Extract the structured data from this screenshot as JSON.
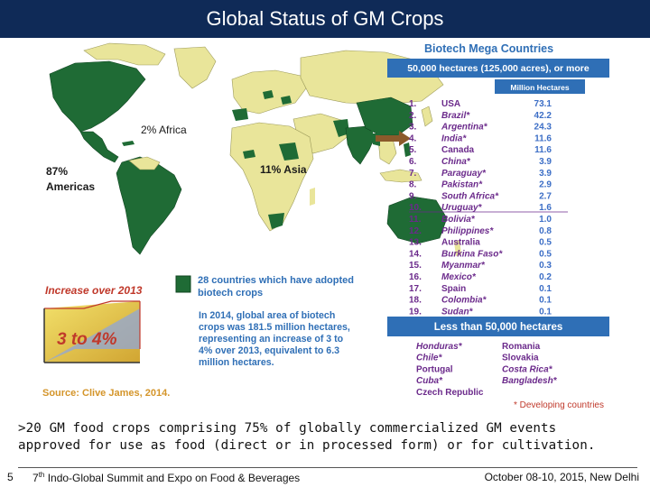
{
  "slide": {
    "title": "Global Status of GM Crops",
    "caption_line1": ">20 GM food crops comprising 75% of globally commercialized GM events",
    "caption_line2": "approved for use as food (direct or in processed form) or for cultivation.",
    "page_number": "5",
    "footer_center_sup": "7",
    "footer_center_sup_suffix": "th",
    "footer_center_text": " Indo-Global Summit and Expo on Food & Beverages",
    "footer_right": "October 08-10, 2015, New Delhi"
  },
  "map": {
    "africa_label": "2% Africa",
    "americas_pct": "87%",
    "americas_label": "Americas",
    "asia_label": "11% Asia"
  },
  "legend": {
    "adopted_text_1": "28 countries which have adopted",
    "adopted_text_2": "biotech crops",
    "increase_title": "Increase over 2013",
    "increase_value": "3 to 4%",
    "summary_1": "In 2014, global area of biotech",
    "summary_2": "crops was 181.5 million hectares,",
    "summary_3": "representing an increase of 3 to",
    "summary_4": "4% over 2013, equivalent to 6.3",
    "summary_5": "million hectares.",
    "source": "Source: Clive James, 2014."
  },
  "mega": {
    "title": "Biotech Mega Countries",
    "subtitle": "50,000 hectares (125,000 acres), or more",
    "unit_header": "Million Hectares",
    "rows": [
      {
        "rank": "1.",
        "country": "USA",
        "value": "73.1"
      },
      {
        "rank": "2.",
        "country": "Brazil*",
        "value": "42.2"
      },
      {
        "rank": "3.",
        "country": "Argentina*",
        "value": "24.3"
      },
      {
        "rank": "4.",
        "country": "India*",
        "value": "11.6"
      },
      {
        "rank": "5.",
        "country": "Canada",
        "value": "11.6"
      },
      {
        "rank": "6.",
        "country": "China*",
        "value": "3.9"
      },
      {
        "rank": "7.",
        "country": "Paraguay*",
        "value": "3.9"
      },
      {
        "rank": "8.",
        "country": "Pakistan*",
        "value": "2.9"
      },
      {
        "rank": "9.",
        "country": "South Africa*",
        "value": "2.7"
      },
      {
        "rank": "10.",
        "country": "Uruguay*",
        "value": "1.6"
      },
      {
        "rank": "11.",
        "country": "Bolivia*",
        "value": "1.0"
      },
      {
        "rank": "12.",
        "country": "Philippines*",
        "value": "0.8"
      },
      {
        "rank": "13.",
        "country": "Australia",
        "value": "0.5"
      },
      {
        "rank": "14.",
        "country": "Burkina Faso*",
        "value": "0.5"
      },
      {
        "rank": "15.",
        "country": "Myanmar*",
        "value": "0.3"
      },
      {
        "rank": "16.",
        "country": "Mexico*",
        "value": "0.2"
      },
      {
        "rank": "17.",
        "country": "Spain",
        "value": "0.1"
      },
      {
        "rank": "18.",
        "country": "Colombia*",
        "value": "0.1"
      },
      {
        "rank": "19.",
        "country": "Sudan*",
        "value": "0.1"
      }
    ],
    "less_title": "Less than 50,000 hectares",
    "less_left": [
      "Honduras*",
      "Chile*",
      "Portugal",
      "Cuba*",
      "Czech Republic"
    ],
    "less_right": [
      "Romania",
      "Slovakia",
      "Costa Rica*",
      "Bangladesh*"
    ],
    "footnote": "* Developing countries"
  },
  "colors": {
    "title_bar": "#0f2a57",
    "adopted_green": "#1f6b35",
    "other_land": "#e9e59a",
    "panel_blue": "#2f6fb6",
    "rank_purple": "#6b2a8b",
    "value_blue": "#3c6ec6",
    "accent_red": "#c0392b",
    "arrow_brown": "#8b5a2b"
  }
}
